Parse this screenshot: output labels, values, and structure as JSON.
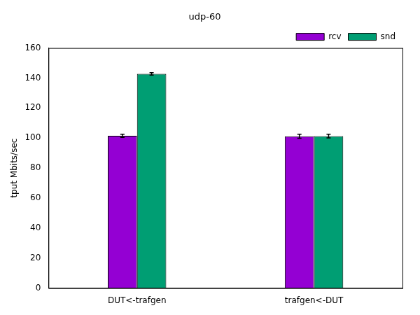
{
  "chart_data": {
    "type": "bar",
    "title": "udp-60",
    "y_label": "tput Mbits/sec",
    "categories": [
      "DUT<-trafgen",
      "trafgen<-DUT"
    ],
    "series": [
      {
        "name": "rcv",
        "color": "#9400d3",
        "values": [
          101.5,
          101.2
        ],
        "errors": [
          1.0,
          1.3
        ]
      },
      {
        "name": "snd",
        "color": "#009e73",
        "values": [
          142.8,
          101.3
        ],
        "errors": [
          0.8,
          1.2
        ]
      }
    ],
    "ylim": [
      0,
      160
    ],
    "yticks": [
      0,
      20,
      40,
      60,
      80,
      100,
      120,
      140,
      160
    ],
    "grid": false,
    "legend": "upper-right"
  }
}
